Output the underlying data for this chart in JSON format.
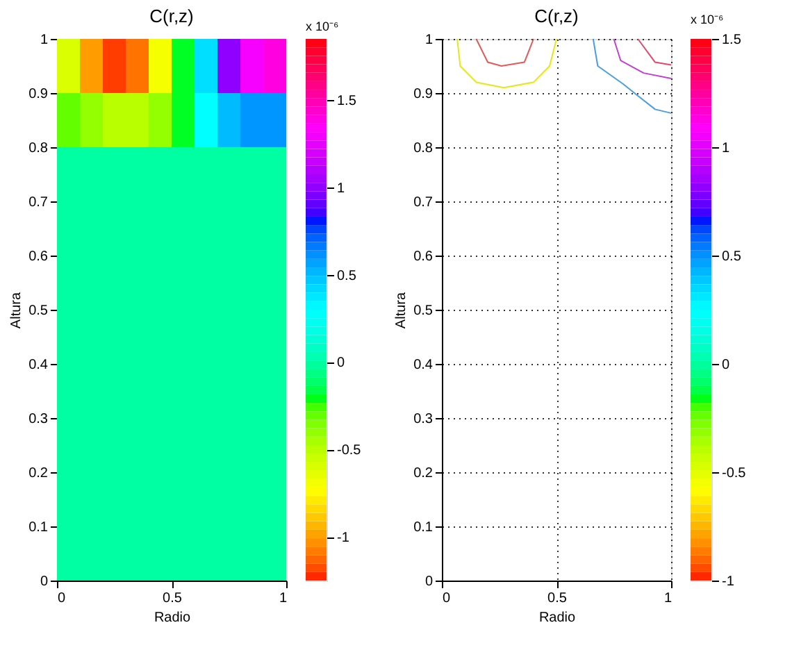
{
  "chart_data": [
    {
      "type": "scatter",
      "title": "C(r,z)",
      "xlabel": "Radio",
      "ylabel": "Altura",
      "clabel": "x 10⁻⁶",
      "marker": "square",
      "x": [
        0.05,
        0.15,
        0.25,
        0.35,
        0.45,
        0.55,
        0.65,
        0.75,
        0.85,
        0.95,
        0.05,
        0.15,
        0.25,
        0.35,
        0.45,
        0.55,
        0.65,
        0.75,
        0.85,
        0.95,
        0.05,
        0.15,
        0.25,
        0.35,
        0.45,
        0.55,
        0.65,
        0.75,
        0.85,
        0.95,
        0.05,
        0.15,
        0.25,
        0.35,
        0.45,
        0.55,
        0.65,
        0.75,
        0.85,
        0.95,
        0.05,
        0.15,
        0.25,
        0.35,
        0.45,
        0.55,
        0.65,
        0.75,
        0.85,
        0.95,
        0.05,
        0.15,
        0.25,
        0.35,
        0.45,
        0.55,
        0.65,
        0.75,
        0.85,
        0.95,
        0.05,
        0.15,
        0.25,
        0.35,
        0.45,
        0.55,
        0.65,
        0.75,
        0.85,
        0.95,
        0.05,
        0.15,
        0.25,
        0.35,
        0.45,
        0.55,
        0.65,
        0.75,
        0.85,
        0.95,
        0.05,
        0.15,
        0.25,
        0.35,
        0.45,
        0.55,
        0.65,
        0.75,
        0.85,
        0.95,
        0.05,
        0.15,
        0.25,
        0.35,
        0.45,
        0.55,
        0.65,
        0.75,
        0.85,
        0.95
      ],
      "values": [
        0.95,
        0.95,
        0.95,
        0.95,
        0.95,
        0.95,
        0.95,
        0.95,
        0.95,
        0.95,
        0.85,
        0.85,
        0.85,
        0.85,
        0.85,
        0.85,
        0.85,
        0.85,
        0.85,
        0.85,
        0.75,
        0.75,
        0.75,
        0.75,
        0.75,
        0.75,
        0.75,
        0.75,
        0.75,
        0.75,
        0.65,
        0.65,
        0.65,
        0.65,
        0.65,
        0.65,
        0.65,
        0.65,
        0.65,
        0.65,
        0.55,
        0.55,
        0.55,
        0.55,
        0.55,
        0.55,
        0.55,
        0.55,
        0.55,
        0.55,
        0.45,
        0.45,
        0.45,
        0.45,
        0.45,
        0.45,
        0.45,
        0.45,
        0.45,
        0.45,
        0.35,
        0.35,
        0.35,
        0.35,
        0.35,
        0.35,
        0.35,
        0.35,
        0.35,
        0.35,
        0.25,
        0.25,
        0.25,
        0.25,
        0.25,
        0.25,
        0.25,
        0.25,
        0.25,
        0.25,
        0.15,
        0.15,
        0.15,
        0.15,
        0.15,
        0.15,
        0.15,
        0.15,
        0.15,
        0.15,
        0.05,
        0.05,
        0.05,
        0.05,
        0.05,
        0.05,
        0.05,
        0.05,
        0.05,
        0.05
      ],
      "cvalues": [
        -0.6,
        -1.0,
        -1.2,
        -1.1,
        -0.7,
        -0.2,
        0.4,
        1.0,
        1.3,
        1.4,
        -0.3,
        -0.4,
        -0.5,
        -0.5,
        -0.4,
        -0.2,
        0.3,
        0.5,
        0.6,
        0.6,
        0,
        0,
        0,
        0,
        0,
        0,
        0,
        0,
        0,
        0,
        0,
        0,
        0,
        0,
        0,
        0,
        0,
        0,
        0,
        0,
        0,
        0,
        0,
        0,
        0,
        0,
        0,
        0,
        0,
        0,
        0,
        0,
        0,
        0,
        0,
        0,
        0,
        0,
        0,
        0,
        0,
        0,
        0,
        0,
        0,
        0,
        0,
        0,
        0,
        0,
        0,
        0,
        0,
        0,
        0,
        0,
        0,
        0,
        0,
        0,
        0,
        0,
        0,
        0,
        0,
        0,
        0,
        0,
        0,
        0,
        0,
        0,
        0,
        0,
        0,
        0,
        0,
        0,
        0,
        0
      ],
      "xlim": [
        0,
        1
      ],
      "xticks": [
        0,
        0.5,
        1
      ],
      "ylim": [
        0,
        1
      ],
      "yticks": [
        0,
        0.1,
        0.2,
        0.3,
        0.4,
        0.5,
        0.6,
        0.7,
        0.8,
        0.9,
        1
      ],
      "clim": [
        -1.25,
        1.85
      ],
      "cticks": [
        -1,
        -0.5,
        0,
        0.5,
        1,
        1.5
      ]
    },
    {
      "type": "line",
      "title": "C(r,z)",
      "xlabel": "Radio",
      "ylabel": "Altura",
      "clabel": "x 10⁻⁶",
      "series": [
        {
          "color": "#e6e619",
          "x": [
            0.067,
            0.08,
            0.15,
            0.27,
            0.4,
            0.47,
            0.5
          ],
          "values": [
            1,
            0.95,
            0.92,
            0.91,
            0.92,
            0.95,
            1
          ]
        },
        {
          "color": "#e05a5a",
          "x": [
            0.15,
            0.2,
            0.26,
            0.36,
            0.4
          ],
          "values": [
            1,
            0.957,
            0.95,
            0.957,
            1
          ]
        },
        {
          "color": "#4a9ee0",
          "x": [
            0.66,
            0.68,
            0.79,
            0.84,
            0.93,
            1
          ],
          "values": [
            1,
            0.95,
            0.917,
            0.9,
            0.87,
            0.863
          ]
        },
        {
          "color": "#c040d0",
          "x": [
            0.75,
            0.78,
            0.88,
            1
          ],
          "values": [
            1,
            0.96,
            0.937,
            0.927
          ]
        },
        {
          "color": "#e04a6a",
          "x": [
            0.855,
            0.93,
            1
          ],
          "values": [
            1,
            0.957,
            0.952
          ]
        }
      ],
      "xlim": [
        0,
        1
      ],
      "xticks": [
        0,
        0.5,
        1
      ],
      "ylim": [
        0,
        1
      ],
      "yticks": [
        0,
        0.1,
        0.2,
        0.3,
        0.4,
        0.5,
        0.6,
        0.7,
        0.8,
        0.9,
        1
      ],
      "clim": [
        -1,
        1.5
      ],
      "cticks": [
        -1,
        -0.5,
        0,
        0.5,
        1,
        1.5
      ],
      "grid": true,
      "line_style": "solid"
    }
  ]
}
